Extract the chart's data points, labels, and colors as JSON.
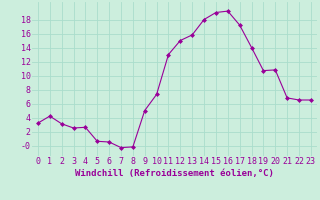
{
  "x": [
    0,
    1,
    2,
    3,
    4,
    5,
    6,
    7,
    8,
    9,
    10,
    11,
    12,
    13,
    14,
    15,
    16,
    17,
    18,
    19,
    20,
    21,
    22,
    23
  ],
  "y": [
    3.2,
    4.2,
    3.1,
    2.5,
    2.6,
    0.6,
    0.5,
    -0.3,
    -0.2,
    5.0,
    7.3,
    13.0,
    15.0,
    15.8,
    18.0,
    19.0,
    19.2,
    17.2,
    14.0,
    10.7,
    10.8,
    6.8,
    6.5,
    6.5
  ],
  "line_color": "#990099",
  "marker": "D",
  "marker_size": 2,
  "background_color": "#cceedd",
  "grid_color": "#aaddcc",
  "xlabel": "Windchill (Refroidissement éolien,°C)",
  "xlabel_fontsize": 6.5,
  "tick_fontsize": 6,
  "ylim": [
    -1.5,
    20.5
  ],
  "xlim": [
    -0.5,
    23.5
  ],
  "yticks": [
    0,
    2,
    4,
    6,
    8,
    10,
    12,
    14,
    16,
    18
  ],
  "ytick_labels": [
    "-0",
    "2",
    "4",
    "6",
    "8",
    "10",
    "12",
    "14",
    "16",
    "18"
  ],
  "xticks": [
    0,
    1,
    2,
    3,
    4,
    5,
    6,
    7,
    8,
    9,
    10,
    11,
    12,
    13,
    14,
    15,
    16,
    17,
    18,
    19,
    20,
    21,
    22,
    23
  ]
}
